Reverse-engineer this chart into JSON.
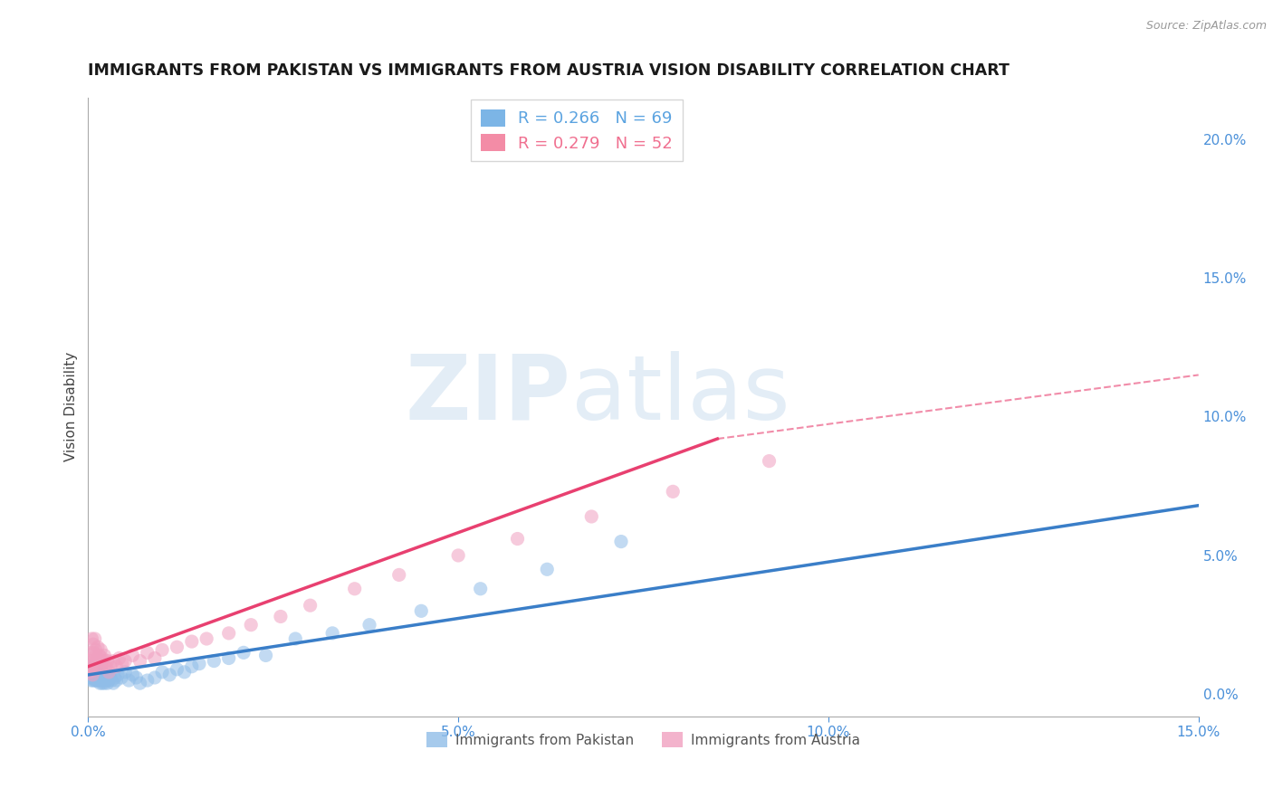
{
  "title": "IMMIGRANTS FROM PAKISTAN VS IMMIGRANTS FROM AUSTRIA VISION DISABILITY CORRELATION CHART",
  "source": "Source: ZipAtlas.com",
  "ylabel": "Vision Disability",
  "xlim": [
    0.0,
    0.15
  ],
  "ylim": [
    -0.008,
    0.215
  ],
  "right_yticks": [
    0.0,
    0.05,
    0.1,
    0.15,
    0.2
  ],
  "xticks": [
    0.0,
    0.05,
    0.1,
    0.15
  ],
  "legend_entries": [
    {
      "label": "R = 0.266   N = 69",
      "color": "#5BA3E0"
    },
    {
      "label": "R = 0.279   N = 52",
      "color": "#F07090"
    }
  ],
  "legend_labels": [
    "Immigrants from Pakistan",
    "Immigrants from Austria"
  ],
  "pakistan_scatter": {
    "x": [
      0.0002,
      0.0003,
      0.0003,
      0.0004,
      0.0005,
      0.0005,
      0.0006,
      0.0006,
      0.0007,
      0.0007,
      0.0008,
      0.0008,
      0.0009,
      0.001,
      0.001,
      0.0011,
      0.0011,
      0.0012,
      0.0012,
      0.0013,
      0.0014,
      0.0014,
      0.0015,
      0.0015,
      0.0016,
      0.0016,
      0.0017,
      0.0018,
      0.0018,
      0.0019,
      0.002,
      0.0021,
      0.0022,
      0.0023,
      0.0024,
      0.0025,
      0.0026,
      0.0028,
      0.003,
      0.0032,
      0.0034,
      0.0036,
      0.0038,
      0.004,
      0.0045,
      0.005,
      0.0055,
      0.006,
      0.0065,
      0.007,
      0.008,
      0.009,
      0.01,
      0.011,
      0.012,
      0.013,
      0.014,
      0.015,
      0.017,
      0.019,
      0.021,
      0.024,
      0.028,
      0.033,
      0.038,
      0.045,
      0.053,
      0.062,
      0.072
    ],
    "y": [
      0.008,
      0.006,
      0.01,
      0.005,
      0.007,
      0.009,
      0.006,
      0.008,
      0.005,
      0.007,
      0.006,
      0.008,
      0.005,
      0.006,
      0.008,
      0.005,
      0.007,
      0.006,
      0.008,
      0.005,
      0.006,
      0.007,
      0.005,
      0.006,
      0.004,
      0.007,
      0.005,
      0.006,
      0.008,
      0.004,
      0.005,
      0.006,
      0.004,
      0.006,
      0.005,
      0.007,
      0.004,
      0.005,
      0.006,
      0.005,
      0.004,
      0.006,
      0.005,
      0.007,
      0.006,
      0.008,
      0.005,
      0.007,
      0.006,
      0.004,
      0.005,
      0.006,
      0.008,
      0.007,
      0.009,
      0.008,
      0.01,
      0.011,
      0.012,
      0.013,
      0.015,
      0.014,
      0.02,
      0.022,
      0.025,
      0.03,
      0.038,
      0.045,
      0.055
    ],
    "color": "#90BDE8",
    "alpha": 0.55,
    "size": 120
  },
  "austria_scatter": {
    "x": [
      0.0002,
      0.0003,
      0.0003,
      0.0004,
      0.0005,
      0.0005,
      0.0006,
      0.0006,
      0.0007,
      0.0007,
      0.0008,
      0.0009,
      0.001,
      0.0011,
      0.0012,
      0.0013,
      0.0014,
      0.0015,
      0.0016,
      0.0017,
      0.0018,
      0.0019,
      0.002,
      0.0022,
      0.0024,
      0.0026,
      0.0028,
      0.003,
      0.0034,
      0.0038,
      0.0042,
      0.0046,
      0.005,
      0.006,
      0.007,
      0.008,
      0.009,
      0.01,
      0.012,
      0.014,
      0.016,
      0.019,
      0.022,
      0.026,
      0.03,
      0.036,
      0.042,
      0.05,
      0.058,
      0.068,
      0.079,
      0.092
    ],
    "y": [
      0.01,
      0.012,
      0.008,
      0.015,
      0.02,
      0.01,
      0.013,
      0.007,
      0.018,
      0.011,
      0.015,
      0.02,
      0.016,
      0.009,
      0.013,
      0.017,
      0.011,
      0.014,
      0.012,
      0.016,
      0.01,
      0.013,
      0.012,
      0.014,
      0.01,
      0.012,
      0.008,
      0.01,
      0.012,
      0.01,
      0.013,
      0.011,
      0.012,
      0.014,
      0.012,
      0.015,
      0.013,
      0.016,
      0.017,
      0.019,
      0.02,
      0.022,
      0.025,
      0.028,
      0.032,
      0.038,
      0.043,
      0.05,
      0.056,
      0.064,
      0.073,
      0.084
    ],
    "color": "#F0A0C0",
    "alpha": 0.55,
    "size": 120
  },
  "pakistan_trend": {
    "x_start": 0.0,
    "x_end": 0.15,
    "y_start": 0.007,
    "y_end": 0.068,
    "color": "#3A7EC8",
    "linewidth": 2.5
  },
  "austria_trend": {
    "x_start": 0.0,
    "x_end": 0.085,
    "y_start": 0.01,
    "y_end": 0.092,
    "color": "#E84070",
    "linewidth": 2.5,
    "linestyle": "-"
  },
  "austria_trend_ext": {
    "x_start": 0.085,
    "x_end": 0.15,
    "y_start": 0.092,
    "y_end": 0.115,
    "color": "#E84070",
    "linewidth": 1.5,
    "linestyle": "--"
  },
  "watermark_zip": "ZIP",
  "watermark_atlas": "atlas",
  "background_color": "#FFFFFF",
  "grid_color": "#CCCCCC",
  "title_color": "#1A1A1A",
  "axis_color": "#4A90D9",
  "title_fontsize": 12.5,
  "label_fontsize": 11
}
